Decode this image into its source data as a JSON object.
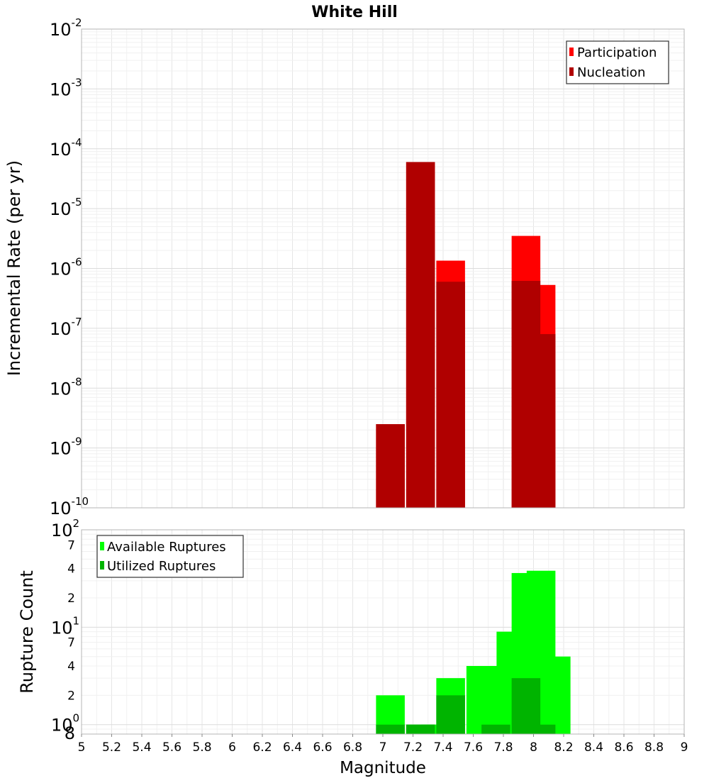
{
  "chart_data": [
    {
      "type": "bar",
      "title": "White Hill",
      "xlabel": "",
      "ylabel": "Incremental Rate (per yr)",
      "yscale": "log",
      "ylim": [
        1e-10,
        0.01
      ],
      "xlim": [
        5,
        9
      ],
      "yticks": [
        {
          "base": "10",
          "exp": "-2"
        },
        {
          "base": "10",
          "exp": "-3"
        },
        {
          "base": "10",
          "exp": "-4"
        },
        {
          "base": "10",
          "exp": "-5"
        },
        {
          "base": "10",
          "exp": "-6"
        },
        {
          "base": "10",
          "exp": "-7"
        },
        {
          "base": "10",
          "exp": "-8"
        },
        {
          "base": "10",
          "exp": "-9"
        },
        {
          "base": "10",
          "exp": "-10"
        }
      ],
      "grid": true,
      "legend_position": "top-right",
      "series": [
        {
          "name": "Participation",
          "color": "#ff0000",
          "x": [
            7.05,
            7.25,
            7.45,
            7.95,
            8.05
          ],
          "values": [
            2.5e-09,
            6e-05,
            1.35e-06,
            3.5e-06,
            5.3e-07
          ]
        },
        {
          "name": "Nucleation",
          "color": "#b00000",
          "x": [
            7.05,
            7.25,
            7.45,
            7.95,
            8.05
          ],
          "values": [
            2.5e-09,
            6e-05,
            6e-07,
            6.2e-07,
            8e-08
          ]
        }
      ]
    },
    {
      "type": "bar",
      "title": "",
      "xlabel": "Magnitude",
      "ylabel": "Rupture Count",
      "yscale": "log",
      "ylim": [
        0.8,
        100
      ],
      "xlim": [
        5,
        9
      ],
      "xticks": [
        "5",
        "5.2",
        "5.4",
        "5.6",
        "5.8",
        "6",
        "6.2",
        "6.4",
        "6.6",
        "6.8",
        "7",
        "7.2",
        "7.4",
        "7.6",
        "7.8",
        "8",
        "8.2",
        "8.4",
        "8.6",
        "8.8",
        "9"
      ],
      "ytick_minor": [
        "2",
        "4",
        "7"
      ],
      "ytick_low": "8",
      "yticks": [
        {
          "base": "10",
          "exp": "2"
        },
        {
          "base": "10",
          "exp": "1"
        },
        {
          "base": "10",
          "exp": "0"
        }
      ],
      "grid": true,
      "legend_position": "top-left",
      "series": [
        {
          "name": "Available Ruptures",
          "color": "#00ff00",
          "x": [
            7.05,
            7.25,
            7.35,
            7.45,
            7.65,
            7.75,
            7.85,
            7.95,
            8.05,
            8.15
          ],
          "values": [
            2,
            1,
            1,
            3,
            4,
            4,
            9,
            36,
            38,
            5
          ]
        },
        {
          "name": "Utilized Ruptures",
          "color": "#00b400",
          "x": [
            7.05,
            7.25,
            7.45,
            7.75,
            7.95,
            8.05
          ],
          "values": [
            1,
            1,
            2,
            1,
            3,
            1
          ]
        }
      ]
    }
  ]
}
